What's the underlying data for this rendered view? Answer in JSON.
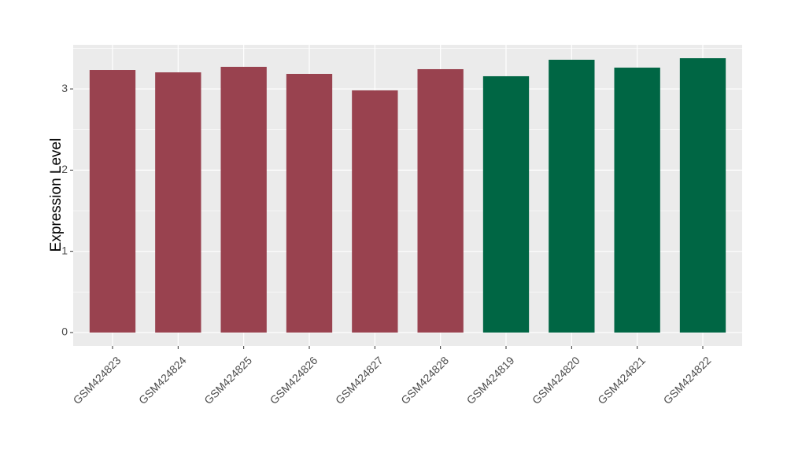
{
  "chart_data": {
    "type": "bar",
    "y_label": "Expression Level",
    "categories": [
      "GSM424823",
      "GSM424824",
      "GSM424825",
      "GSM424826",
      "GSM424827",
      "GSM424828",
      "GSM424819",
      "GSM424820",
      "GSM424821",
      "GSM424822"
    ],
    "values": [
      3.233,
      3.204,
      3.272,
      3.185,
      2.982,
      3.243,
      3.156,
      3.359,
      3.262,
      3.378
    ],
    "colors": [
      "#99424f",
      "#99424f",
      "#99424f",
      "#99424f",
      "#99424f",
      "#99424f",
      "#006644",
      "#006644",
      "#006644",
      "#006644"
    ],
    "ylim": [
      -0.165,
      3.543
    ],
    "yticks": [
      0,
      1,
      2,
      3
    ],
    "grid": true
  }
}
